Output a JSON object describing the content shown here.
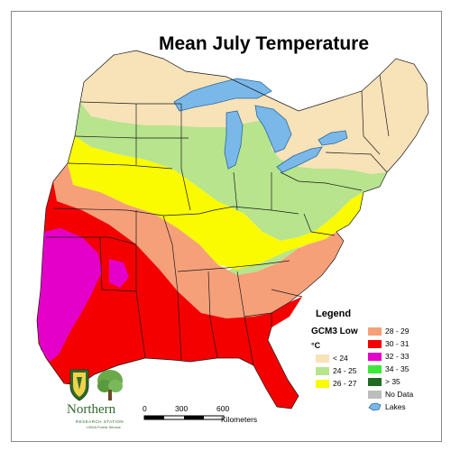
{
  "map": {
    "title": "Mean July Temperature",
    "legend": {
      "heading": "Legend",
      "model": "GCM3 Low",
      "unit": "°C",
      "items": [
        {
          "label": "< 24",
          "color": "#f8e2b8"
        },
        {
          "label": "24 - 25",
          "color": "#b7e48c"
        },
        {
          "label": "26 - 27",
          "color": "#fafa00"
        },
        {
          "label": "28 - 29",
          "color": "#f6a07a"
        },
        {
          "label": "30 - 31",
          "color": "#f40000"
        },
        {
          "label": "32 - 33",
          "color": "#e400c8"
        },
        {
          "label": "34 - 35",
          "color": "#3ce83c"
        },
        {
          "label": "> 35",
          "color": "#1f6b1f"
        },
        {
          "label": "No Data",
          "color": "#bdbdbd"
        },
        {
          "label": "Lakes",
          "color": "#7ab8ea"
        }
      ]
    },
    "scale_bar": {
      "ticks": [
        "0",
        "300",
        "600"
      ],
      "unit": "Kilometers"
    },
    "organization": {
      "name": "Northern",
      "subtitle": "RESEARCH STATION",
      "agency": "USDA Forest Service"
    },
    "colors": {
      "water": "#7ab8ea",
      "border": "#1a1a1a"
    }
  }
}
